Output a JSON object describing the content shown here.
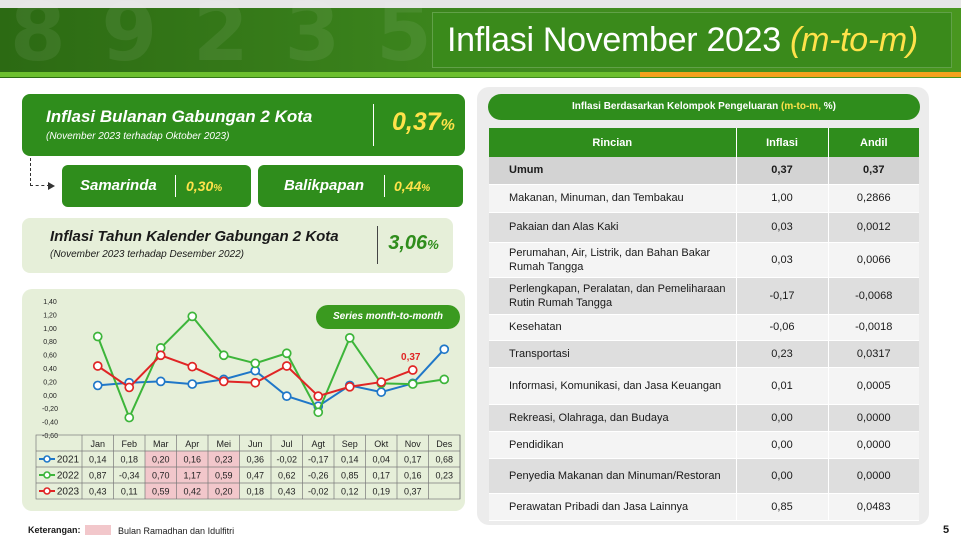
{
  "header": {
    "title_main": "Inflasi November 2023",
    "title_em": "(m-to-m)"
  },
  "monthly": {
    "title": "Inflasi Bulanan Gabungan 2 Kota",
    "subtitle": "(November 2023 terhadap Oktober 2023)",
    "value": "0,37",
    "unit": "%"
  },
  "cities": [
    {
      "name": "Samarinda",
      "value": "0,30",
      "unit": "%"
    },
    {
      "name": "Balikpapan",
      "value": "0,44",
      "unit": "%"
    }
  ],
  "calendar": {
    "title": "Inflasi Tahun Kalender Gabungan 2 Kota",
    "subtitle": "(November 2023 terhadap Desember 2022)",
    "value": "3,06",
    "unit": "%"
  },
  "chart_badge": "Series month-to-month",
  "chart_data": {
    "type": "line",
    "categories": [
      "Jan",
      "Feb",
      "Mar",
      "Apr",
      "Mei",
      "Jun",
      "Jul",
      "Agt",
      "Sep",
      "Okt",
      "Nov",
      "Des"
    ],
    "yticks": [
      "1,40",
      "1,20",
      "1,00",
      "0,80",
      "0,60",
      "0,40",
      "0,20",
      "0,00",
      "-0,20",
      "-0,40",
      "-0,60"
    ],
    "ylim": [
      -0.6,
      1.4
    ],
    "highlight_months": [
      2,
      3,
      4
    ],
    "highlight_label": "0,37",
    "series": [
      {
        "name": "2021",
        "color": "#1f77c8",
        "values": [
          0.14,
          0.18,
          0.2,
          0.16,
          0.23,
          0.36,
          -0.02,
          -0.17,
          0.14,
          0.04,
          0.17,
          0.68
        ],
        "labels": [
          "0,14",
          "0,18",
          "0,20",
          "0,16",
          "0,23",
          "0,36",
          "-0,02",
          "-0,17",
          "0,14",
          "0,04",
          "0,17",
          "0,68"
        ]
      },
      {
        "name": "2022",
        "color": "#3db53a",
        "values": [
          0.87,
          -0.34,
          0.7,
          1.17,
          0.59,
          0.47,
          0.62,
          -0.26,
          0.85,
          0.17,
          0.16,
          0.23
        ],
        "labels": [
          "0,87",
          "-0,34",
          "0,70",
          "1,17",
          "0,59",
          "0,47",
          "0,62",
          "-0,26",
          "0,85",
          "0,17",
          "0,16",
          "0,23"
        ]
      },
      {
        "name": "2023",
        "color": "#e02525",
        "values": [
          0.43,
          0.11,
          0.59,
          0.42,
          0.2,
          0.18,
          0.43,
          -0.02,
          0.12,
          0.19,
          0.37,
          null
        ],
        "labels": [
          "0,43",
          "0,11",
          "0,59",
          "0,42",
          "0,20",
          "0,18",
          "0,43",
          "-0,02",
          "0,12",
          "0,19",
          "0,37",
          ""
        ]
      }
    ]
  },
  "legend": {
    "label": "Keterangan:",
    "text": "Bulan Ramadhan dan Idulfitri",
    "color": "#f2c7cb"
  },
  "table": {
    "title_main": "Inflasi Berdasarkan Kelompok Pengeluaran ",
    "title_hl": "(m-to-m,",
    "title_end": " %)",
    "headers": [
      "Rincian",
      "Inflasi",
      "Andil"
    ],
    "rows": [
      {
        "name": "Umum",
        "inflasi": "0,37",
        "andil": "0,37"
      },
      {
        "name": "Makanan, Minuman, dan Tembakau",
        "inflasi": "1,00",
        "andil": "0,2866"
      },
      {
        "name": "Pakaian dan Alas Kaki",
        "inflasi": "0,03",
        "andil": "0,0012"
      },
      {
        "name": "Perumahan, Air, Listrik, dan Bahan Bakar Rumah Tangga",
        "inflasi": "0,03",
        "andil": "0,0066"
      },
      {
        "name": "Perlengkapan, Peralatan, dan Pemeliharaan Rutin Rumah Tangga",
        "inflasi": "-0,17",
        "andil": "-0,0068"
      },
      {
        "name": "Kesehatan",
        "inflasi": "-0,06",
        "andil": "-0,0018"
      },
      {
        "name": "Transportasi",
        "inflasi": "0,23",
        "andil": "0,0317"
      },
      {
        "name": "Informasi, Komunikasi, dan Jasa Keuangan",
        "inflasi": "0,01",
        "andil": "0,0005"
      },
      {
        "name": "Rekreasi, Olahraga, dan Budaya",
        "inflasi": "0,00",
        "andil": "0,0000"
      },
      {
        "name": "Pendidikan",
        "inflasi": "0,00",
        "andil": "0,0000"
      },
      {
        "name": "Penyedia Makanan dan Minuman/Restoran",
        "inflasi": "0,00",
        "andil": "0,0000"
      },
      {
        "name": "Perawatan Pribadi dan Jasa Lainnya",
        "inflasi": "0,85",
        "andil": "0,0483"
      }
    ]
  },
  "page_number": "5",
  "colors": {
    "brand_green": "#2f8d1c",
    "accent_yellow": "#ffe24a",
    "accent_orange": "#f4a11d"
  }
}
